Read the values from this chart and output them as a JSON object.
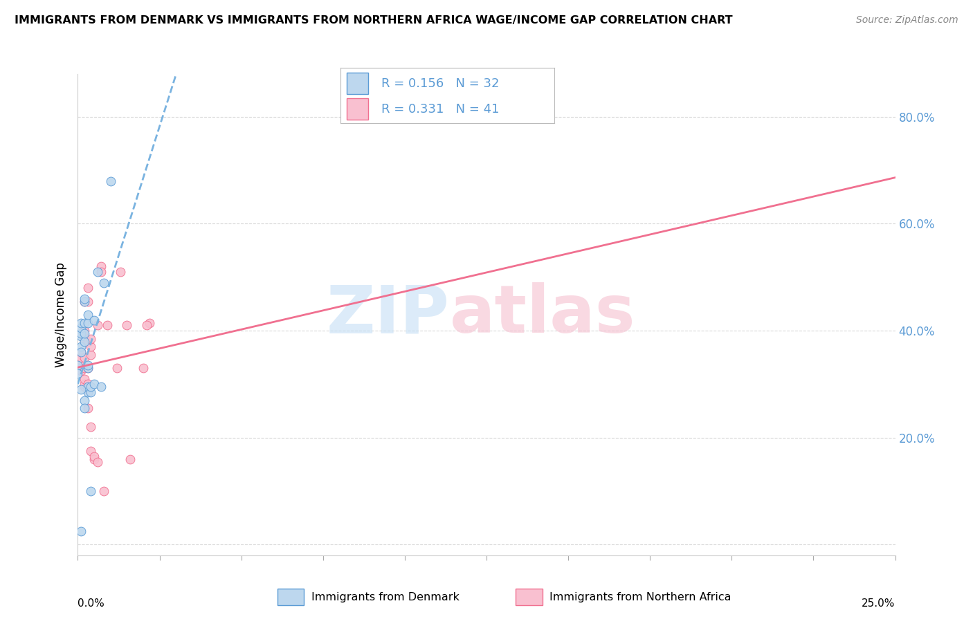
{
  "title": "IMMIGRANTS FROM DENMARK VS IMMIGRANTS FROM NORTHERN AFRICA WAGE/INCOME GAP CORRELATION CHART",
  "source": "Source: ZipAtlas.com",
  "ylabel": "Wage/Income Gap",
  "r_denmark": 0.156,
  "n_denmark": 32,
  "r_africa": 0.331,
  "n_africa": 41,
  "denmark_fill": "#bdd7ee",
  "denmark_edge": "#5b9bd5",
  "africa_fill": "#f9c0d0",
  "africa_edge": "#f07090",
  "denmark_line_color": "#7ab3e0",
  "africa_line_color": "#f07090",
  "legend_text_color": "#5b9bd5",
  "right_tick_color": "#5b9bd5",
  "denmark_points_x": [
    0.0,
    0.0,
    0.001,
    0.001,
    0.001,
    0.001,
    0.001,
    0.001,
    0.002,
    0.002,
    0.002,
    0.002,
    0.002,
    0.002,
    0.003,
    0.003,
    0.003,
    0.003,
    0.003,
    0.003,
    0.004,
    0.004,
    0.004,
    0.005,
    0.005,
    0.006,
    0.007,
    0.008,
    0.01,
    0.001,
    0.001,
    0.002
  ],
  "denmark_points_y": [
    0.335,
    0.32,
    0.37,
    0.36,
    0.39,
    0.395,
    0.405,
    0.415,
    0.38,
    0.415,
    0.395,
    0.455,
    0.46,
    0.27,
    0.285,
    0.295,
    0.33,
    0.335,
    0.415,
    0.43,
    0.1,
    0.285,
    0.295,
    0.3,
    0.42,
    0.51,
    0.295,
    0.49,
    0.68,
    0.025,
    0.29,
    0.255
  ],
  "africa_points_x": [
    0.001,
    0.001,
    0.001,
    0.001,
    0.001,
    0.002,
    0.002,
    0.002,
    0.002,
    0.002,
    0.002,
    0.002,
    0.002,
    0.002,
    0.003,
    0.003,
    0.003,
    0.003,
    0.003,
    0.003,
    0.003,
    0.004,
    0.004,
    0.004,
    0.004,
    0.004,
    0.005,
    0.005,
    0.006,
    0.006,
    0.007,
    0.007,
    0.008,
    0.009,
    0.012,
    0.013,
    0.015,
    0.016,
    0.02,
    0.022,
    0.021
  ],
  "africa_points_y": [
    0.325,
    0.34,
    0.345,
    0.35,
    0.36,
    0.295,
    0.3,
    0.31,
    0.33,
    0.35,
    0.38,
    0.39,
    0.4,
    0.455,
    0.255,
    0.29,
    0.3,
    0.33,
    0.38,
    0.455,
    0.48,
    0.175,
    0.22,
    0.355,
    0.37,
    0.385,
    0.16,
    0.165,
    0.155,
    0.41,
    0.52,
    0.51,
    0.1,
    0.41,
    0.33,
    0.51,
    0.41,
    0.16,
    0.33,
    0.415,
    0.41
  ],
  "xmin": 0.0,
  "xmax": 0.25,
  "ymin": -0.02,
  "ymax": 0.88,
  "grid_color": "#d8d8d8",
  "watermark_zip_color": "#c5dff5",
  "watermark_atlas_color": "#f5c0d0"
}
